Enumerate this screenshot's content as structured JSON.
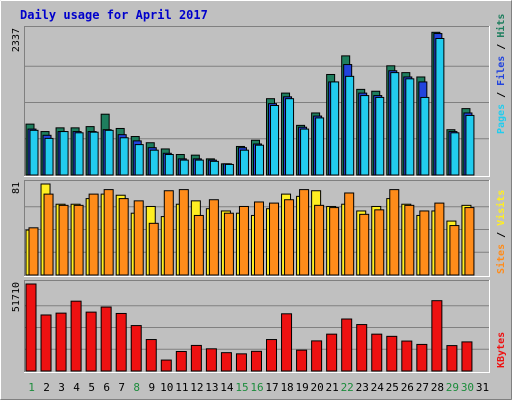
{
  "chart_data": {
    "type": "bar",
    "title": "Daily usage for April 2017",
    "categories": [
      "1",
      "2",
      "3",
      "4",
      "5",
      "6",
      "7",
      "8",
      "9",
      "10",
      "11",
      "12",
      "13",
      "14",
      "15",
      "16",
      "17",
      "18",
      "19",
      "20",
      "21",
      "22",
      "23",
      "24",
      "25",
      "26",
      "27",
      "28",
      "29",
      "30",
      "31"
    ],
    "weekend_days": [
      "1",
      "8",
      "15",
      "16",
      "22",
      "29",
      "30"
    ],
    "colors": {
      "background": "#c0c0c0",
      "panel": "#c0c0c0",
      "title": "#0000cc",
      "axis_text": "#000000",
      "weekend_text": "#1c8c3c",
      "hits": "#1e7e5e",
      "files": "#2244dd",
      "pages": "#22ccee",
      "visits": "#ffee22",
      "sites": "#ff8c1a",
      "kbytes": "#ee1111",
      "grid": "#808080"
    },
    "panels": [
      {
        "id": "hits-files-pages",
        "ymax_label": "2337",
        "ymax": 2337,
        "legend": [
          {
            "text": "Pages",
            "color": "#22ccee"
          },
          {
            "text": "Files",
            "color": "#2244dd"
          },
          {
            "text": "Hits",
            "color": "#1e7e5e"
          }
        ],
        "series": [
          {
            "name": "Hits",
            "values": [
              820,
              700,
              760,
              760,
              780,
              980,
              750,
              620,
              520,
              420,
              330,
              320,
              260,
              180,
              460,
              560,
              1230,
              1320,
              800,
              1000,
              1620,
              1920,
              1380,
              1350,
              1760,
              1650,
              1580,
              2300,
              730,
              1070,
              null
            ]
          },
          {
            "name": "Files",
            "values": [
              740,
              640,
              700,
              700,
              700,
              730,
              650,
              550,
              440,
              350,
              260,
              260,
              240,
              180,
              440,
              500,
              1150,
              1260,
              770,
              950,
              1500,
              1780,
              1320,
              1280,
              1680,
              1580,
              1500,
              2280,
              700,
              1000,
              null
            ]
          },
          {
            "name": "Pages",
            "values": [
              720,
              590,
              700,
              680,
              690,
              720,
              600,
              490,
              400,
              330,
              240,
              240,
              220,
              170,
              400,
              480,
              1120,
              1230,
              740,
              920,
              1500,
              1590,
              1280,
              1250,
              1650,
              1550,
              1250,
              2200,
              680,
              960,
              null
            ]
          }
        ]
      },
      {
        "id": "visits-sites",
        "ymax_label": "81",
        "ymax": 81,
        "legend": [
          {
            "text": "Sites",
            "color": "#ff8c1a"
          },
          {
            "text": "Visits",
            "color": "#ffee22"
          }
        ],
        "series": [
          {
            "name": "Visits",
            "values": [
              40,
              81,
              63,
              63,
              68,
              72,
              71,
              55,
              61,
              52,
              63,
              66,
              59,
              57,
              55,
              53,
              59,
              72,
              70,
              75,
              61,
              63,
              57,
              61,
              68,
              63,
              53,
              57,
              48,
              62,
              null
            ]
          },
          {
            "name": "Sites",
            "values": [
              42,
              72,
              62,
              62,
              72,
              76,
              68,
              66,
              46,
              75,
              76,
              53,
              67,
              55,
              61,
              65,
              64,
              67,
              76,
              62,
              60,
              73,
              54,
              58,
              76,
              62,
              57,
              64,
              44,
              60,
              null
            ]
          }
        ]
      },
      {
        "id": "kbytes",
        "ymax_label": "51710",
        "ymax": 51710,
        "legend": [
          {
            "text": "KBytes",
            "color": "#ee1111"
          }
        ],
        "series": [
          {
            "name": "KBytes",
            "values": [
              51710,
              33300,
              34400,
              41500,
              35000,
              38000,
              34200,
              27000,
              18700,
              6500,
              11600,
              15200,
              13200,
              10900,
              10200,
              11700,
              18700,
              34000,
              12400,
              17900,
              21900,
              30900,
              27600,
              21900,
              20600,
              17800,
              15800,
              41800,
              15100,
              17300,
              null
            ]
          }
        ]
      }
    ]
  }
}
